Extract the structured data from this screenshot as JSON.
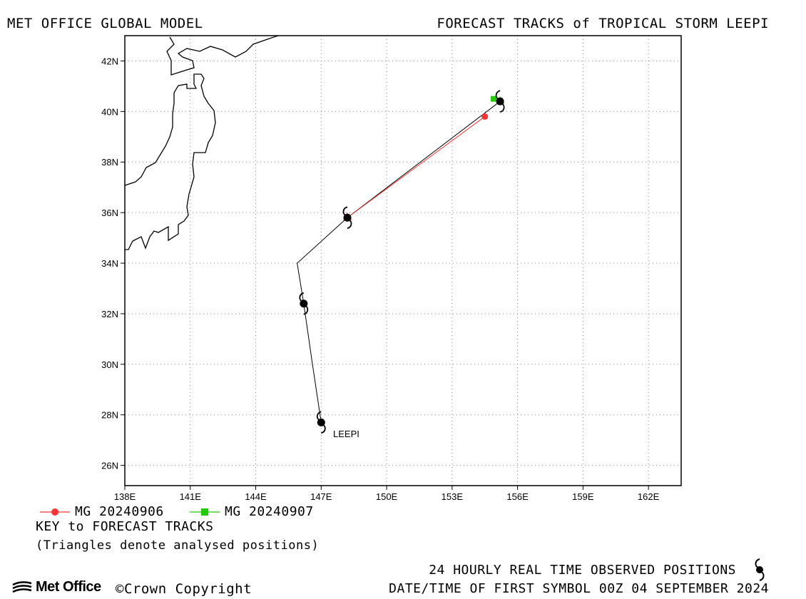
{
  "header": {
    "left_title": "MET OFFICE GLOBAL MODEL",
    "right_title": "FORECAST TRACKS of TROPICAL STORM LEEPI"
  },
  "map": {
    "lon_range": [
      138,
      163.5
    ],
    "lat_range": [
      25.2,
      43
    ],
    "lon_ticks": [
      138,
      141,
      144,
      147,
      150,
      153,
      156,
      159,
      162
    ],
    "lat_ticks": [
      26,
      28,
      30,
      32,
      34,
      36,
      38,
      40,
      42
    ],
    "lon_labels": [
      "138E",
      "141E",
      "144E",
      "147E",
      "150E",
      "153E",
      "156E",
      "159E",
      "162E"
    ],
    "lat_labels": [
      "26N",
      "28N",
      "30N",
      "32N",
      "34N",
      "36N",
      "38N",
      "40N",
      "42N"
    ],
    "grid": true,
    "storm_label": "LEEPI",
    "observed_track": [
      [
        147.0,
        27.7
      ],
      [
        146.6,
        30.0
      ],
      [
        146.2,
        32.4
      ],
      [
        145.9,
        34.0
      ],
      [
        148.2,
        35.8
      ],
      [
        155.2,
        40.4
      ]
    ],
    "observed_symbols": [
      [
        147.0,
        27.7
      ],
      [
        146.2,
        32.4
      ],
      [
        148.2,
        35.8
      ],
      [
        155.2,
        40.4
      ]
    ],
    "forecasts": [
      {
        "label": "MG 20240906",
        "color": "#ff3333",
        "marker": "circle",
        "points": [
          [
            148.2,
            35.8
          ],
          [
            154.5,
            39.8
          ]
        ]
      },
      {
        "label": "MG 20240907",
        "color": "#22cc00",
        "marker": "square",
        "points": [
          [
            155.2,
            40.4
          ],
          [
            154.9,
            40.5
          ]
        ]
      }
    ],
    "coast_color": "#000000"
  },
  "legend": {
    "key_title": "KEY to FORECAST TRACKS",
    "key_note": "(Triangles denote analysed positions)"
  },
  "footer": {
    "observed": "24 HOURLY REAL TIME OBSERVED POSITIONS",
    "date_line": "DATE/TIME OF FIRST SYMBOL 00Z 04 SEPTEMBER 2024",
    "brand": "Met Office",
    "copyright": "©Crown Copyright"
  }
}
